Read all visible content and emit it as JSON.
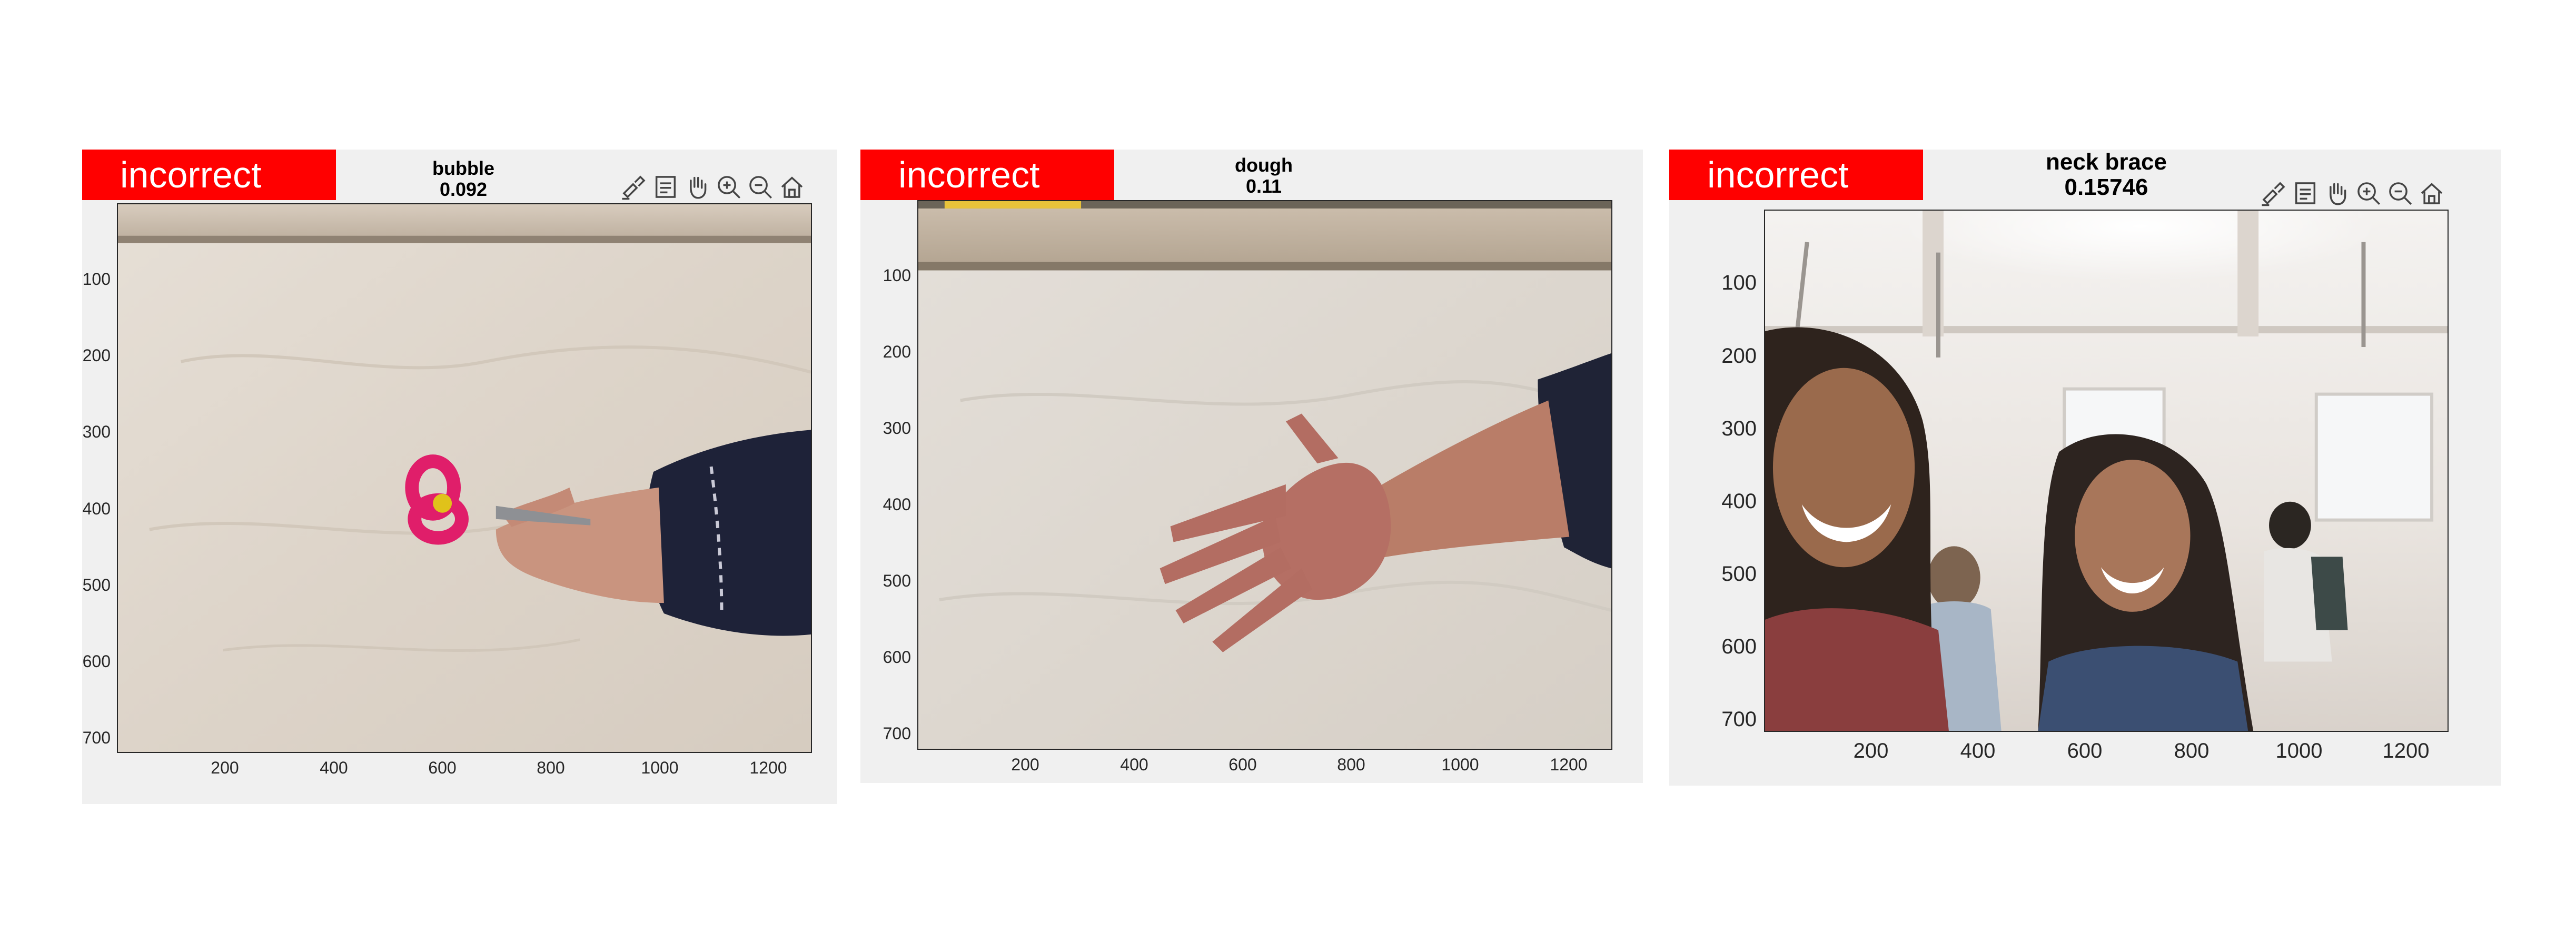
{
  "panels": [
    {
      "badge": "incorrect",
      "title": "bubble",
      "score": "0.092",
      "y_ticks": [
        "100",
        "200",
        "300",
        "400",
        "500",
        "600",
        "700"
      ],
      "x_ticks": [
        "200",
        "400",
        "600",
        "800",
        "1000",
        "1200"
      ],
      "image": "scissors-in-hand-on-plywood"
    },
    {
      "badge": "incorrect",
      "title": "dough",
      "score": "0.11",
      "y_ticks": [
        "100",
        "200",
        "300",
        "400",
        "500",
        "600",
        "700"
      ],
      "x_ticks": [
        "200",
        "400",
        "600",
        "800",
        "1000",
        "1200"
      ],
      "image": "open-hand-on-plywood"
    },
    {
      "badge": "incorrect",
      "title": "neck brace",
      "score": "0.15746",
      "y_ticks": [
        "100",
        "200",
        "300",
        "400",
        "500",
        "600",
        "700"
      ],
      "x_ticks": [
        "200",
        "400",
        "600",
        "800",
        "1000",
        "1200"
      ],
      "image": "selfie-two-people-in-classroom"
    }
  ],
  "toolbar_icons": [
    "brush-icon",
    "data-tips-icon",
    "pan-hand-icon",
    "zoom-in-icon",
    "zoom-out-icon",
    "home-icon"
  ],
  "colors": {
    "badge": "#ff0000",
    "panel_bg": "#f0f0f0",
    "axis": "#262626"
  }
}
